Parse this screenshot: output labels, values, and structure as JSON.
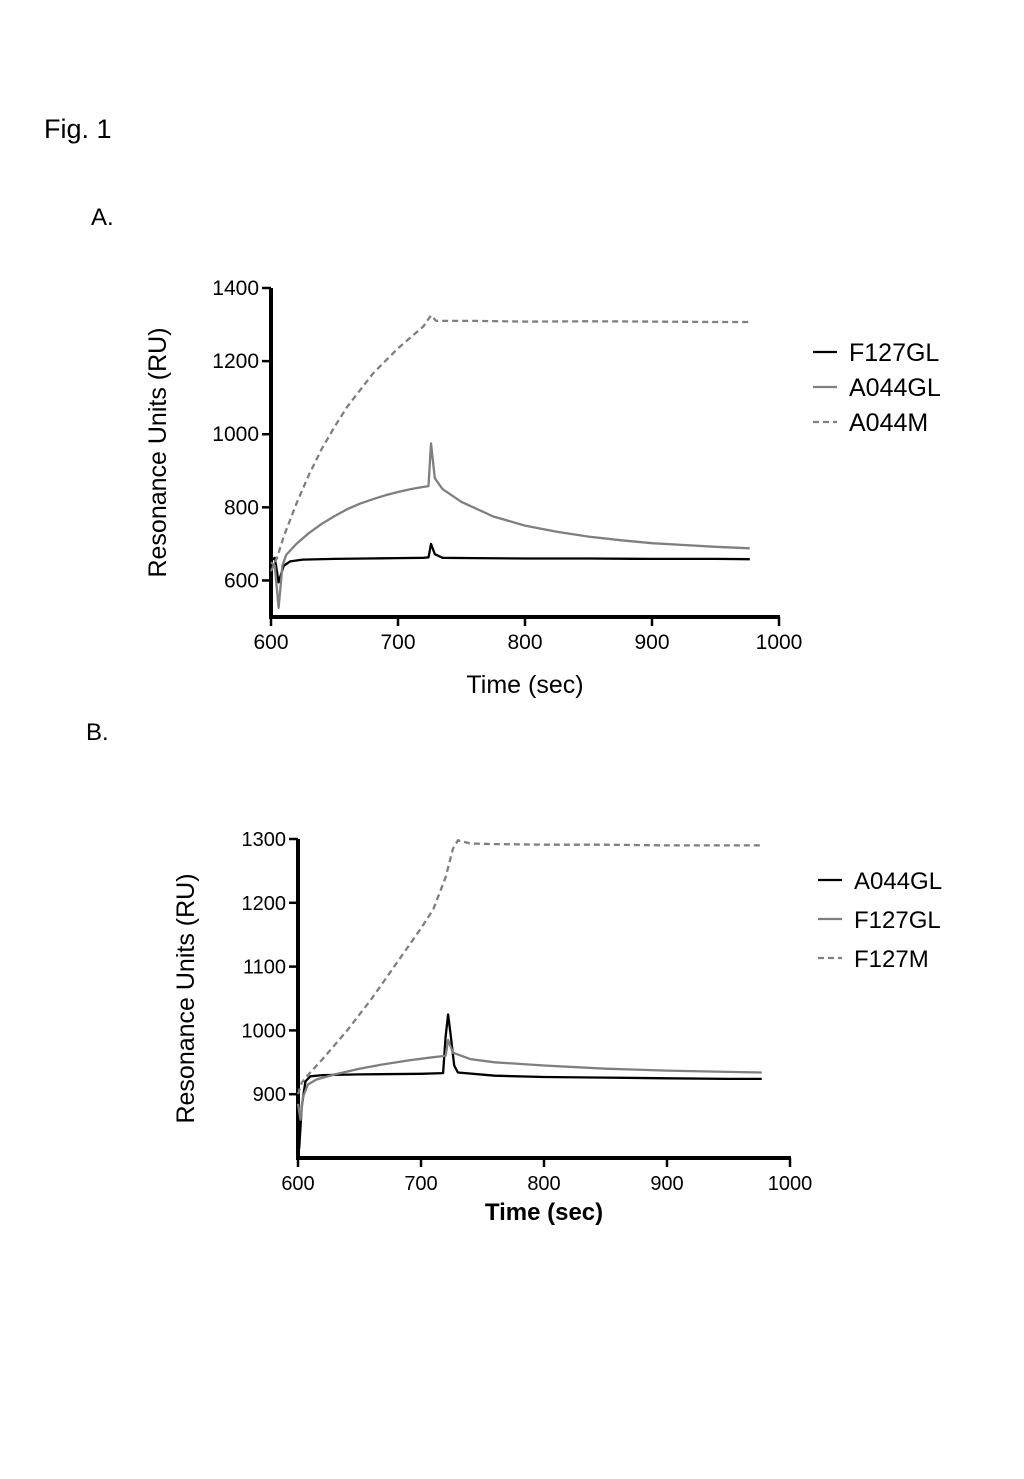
{
  "figure_title": "Fig. 1",
  "colors": {
    "black": "#000000",
    "gray": "#7f7f7f"
  },
  "chart_data": [
    {
      "panel": "A.",
      "type": "line",
      "xlabel": "Time (sec)",
      "ylabel": "Resonance Units (RU)",
      "xlim": [
        600,
        1000
      ],
      "ylim": [
        500,
        1400
      ],
      "xticks": [
        600,
        700,
        800,
        900,
        1000
      ],
      "yticks": [
        600,
        800,
        1000,
        1200,
        1400
      ],
      "xlabel_bold": false,
      "legend_position": "right",
      "series": [
        {
          "name": "F127GL",
          "color": "#000000",
          "dash": "solid",
          "points": [
            [
              600,
              655
            ],
            [
              603,
              662
            ],
            [
              606,
              595
            ],
            [
              610,
              640
            ],
            [
              615,
              652
            ],
            [
              625,
              657
            ],
            [
              650,
              659
            ],
            [
              675,
              660
            ],
            [
              700,
              661
            ],
            [
              720,
              662
            ],
            [
              724,
              663
            ],
            [
              726,
              700
            ],
            [
              729,
              672
            ],
            [
              735,
              662
            ],
            [
              760,
              661
            ],
            [
              800,
              660
            ],
            [
              850,
              660
            ],
            [
              900,
              659
            ],
            [
              950,
              659
            ],
            [
              977,
              658
            ]
          ]
        },
        {
          "name": "A044GL",
          "color": "#7f7f7f",
          "dash": "solid",
          "points": [
            [
              600,
              650
            ],
            [
              603,
              640
            ],
            [
              606,
              525
            ],
            [
              609,
              640
            ],
            [
              612,
              670
            ],
            [
              620,
              700
            ],
            [
              630,
              730
            ],
            [
              640,
              755
            ],
            [
              650,
              776
            ],
            [
              660,
              795
            ],
            [
              670,
              810
            ],
            [
              680,
              822
            ],
            [
              690,
              833
            ],
            [
              700,
              842
            ],
            [
              710,
              850
            ],
            [
              720,
              856
            ],
            [
              724,
              858
            ],
            [
              726,
              975
            ],
            [
              729,
              880
            ],
            [
              735,
              850
            ],
            [
              750,
              815
            ],
            [
              775,
              775
            ],
            [
              800,
              750
            ],
            [
              825,
              733
            ],
            [
              850,
              720
            ],
            [
              875,
              710
            ],
            [
              900,
              702
            ],
            [
              925,
              697
            ],
            [
              950,
              692
            ],
            [
              977,
              688
            ]
          ]
        },
        {
          "name": "A044M",
          "color": "#7f7f7f",
          "dash": "dashed",
          "points": [
            [
              600,
              625
            ],
            [
              605,
              665
            ],
            [
              610,
              720
            ],
            [
              620,
              810
            ],
            [
              630,
              890
            ],
            [
              640,
              960
            ],
            [
              650,
              1020
            ],
            [
              660,
              1075
            ],
            [
              670,
              1120
            ],
            [
              680,
              1165
            ],
            [
              690,
              1200
            ],
            [
              700,
              1235
            ],
            [
              710,
              1265
            ],
            [
              720,
              1295
            ],
            [
              726,
              1325
            ],
            [
              730,
              1310
            ],
            [
              760,
              1310
            ],
            [
              800,
              1308
            ],
            [
              850,
              1309
            ],
            [
              900,
              1308
            ],
            [
              950,
              1307
            ],
            [
              977,
              1307
            ]
          ]
        }
      ]
    },
    {
      "panel": "B.",
      "type": "line",
      "xlabel": "Time (sec)",
      "ylabel": "Resonance Units (RU)",
      "xlim": [
        600,
        1000
      ],
      "ylim": [
        800,
        1300
      ],
      "xticks": [
        600,
        700,
        800,
        900,
        1000
      ],
      "yticks": [
        900,
        1000,
        1100,
        1200,
        1300
      ],
      "xlabel_bold": true,
      "legend_position": "right",
      "series": [
        {
          "name": "A044GL",
          "color": "#000000",
          "dash": "solid",
          "points": [
            [
              600,
              900
            ],
            [
              601,
              815
            ],
            [
              603,
              880
            ],
            [
              606,
              920
            ],
            [
              610,
              928
            ],
            [
              620,
              930
            ],
            [
              650,
              931
            ],
            [
              700,
              932
            ],
            [
              718,
              933
            ],
            [
              720,
              990
            ],
            [
              722,
              1025
            ],
            [
              724,
              995
            ],
            [
              727,
              945
            ],
            [
              730,
              934
            ],
            [
              760,
              929
            ],
            [
              800,
              927
            ],
            [
              850,
              926
            ],
            [
              900,
              925
            ],
            [
              950,
              924
            ],
            [
              977,
              924
            ]
          ]
        },
        {
          "name": "F127GL",
          "color": "#7f7f7f",
          "dash": "solid",
          "points": [
            [
              600,
              885
            ],
            [
              602,
              860
            ],
            [
              604,
              895
            ],
            [
              608,
              915
            ],
            [
              615,
              923
            ],
            [
              630,
              931
            ],
            [
              650,
              940
            ],
            [
              670,
              947
            ],
            [
              690,
              953
            ],
            [
              710,
              958
            ],
            [
              720,
              960
            ],
            [
              722,
              985
            ],
            [
              726,
              965
            ],
            [
              740,
              955
            ],
            [
              760,
              950
            ],
            [
              800,
              945
            ],
            [
              850,
              940
            ],
            [
              900,
              937
            ],
            [
              950,
              935
            ],
            [
              977,
              934
            ]
          ]
        },
        {
          "name": "F127M",
          "color": "#7f7f7f",
          "dash": "dashed",
          "points": [
            [
              600,
              900
            ],
            [
              603,
              918
            ],
            [
              608,
              930
            ],
            [
              620,
              955
            ],
            [
              640,
              1000
            ],
            [
              660,
              1050
            ],
            [
              680,
              1105
            ],
            [
              700,
              1160
            ],
            [
              710,
              1190
            ],
            [
              720,
              1240
            ],
            [
              726,
              1285
            ],
            [
              730,
              1298
            ],
            [
              740,
              1293
            ],
            [
              760,
              1292
            ],
            [
              800,
              1291
            ],
            [
              850,
              1291
            ],
            [
              900,
              1290
            ],
            [
              950,
              1290
            ],
            [
              977,
              1290
            ]
          ]
        }
      ]
    }
  ]
}
